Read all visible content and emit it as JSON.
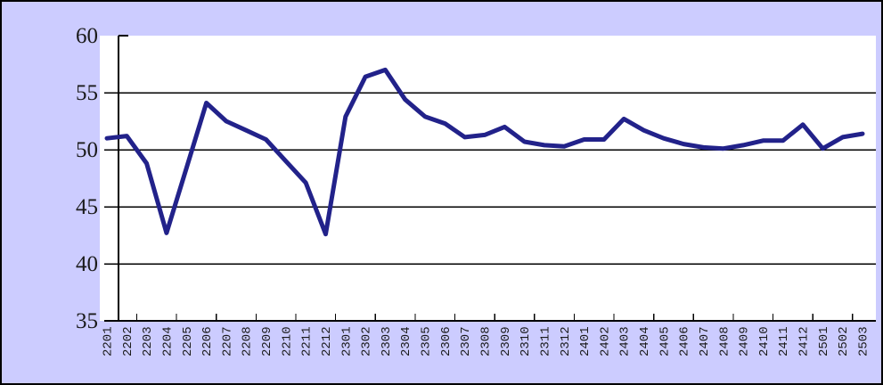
{
  "chart_data": {
    "type": "line",
    "categories": [
      "2201",
      "2202",
      "2203",
      "2204",
      "2205",
      "2206",
      "2207",
      "2208",
      "2209",
      "2210",
      "2211",
      "2212",
      "2301",
      "2302",
      "2303",
      "2304",
      "2305",
      "2306",
      "2307",
      "2308",
      "2309",
      "2310",
      "2311",
      "2312",
      "2401",
      "2402",
      "2403",
      "2404",
      "2405",
      "2406",
      "2407",
      "2408",
      "2409",
      "2410",
      "2411",
      "2412",
      "2501",
      "2502",
      "2503"
    ],
    "values": [
      51.0,
      51.2,
      48.8,
      42.7,
      48.4,
      54.1,
      52.5,
      51.7,
      50.9,
      49.0,
      47.1,
      42.6,
      52.9,
      56.4,
      57.0,
      54.4,
      52.9,
      52.3,
      51.1,
      51.3,
      52.0,
      50.7,
      50.4,
      50.3,
      50.9,
      50.9,
      52.7,
      51.7,
      51.0,
      50.5,
      50.2,
      50.1,
      50.4,
      50.8,
      50.8,
      52.2,
      50.1,
      51.1,
      51.4
    ],
    "ylim": [
      35,
      60
    ],
    "yticks": [
      35,
      40,
      45,
      50,
      55,
      60
    ],
    "grid": "horizontal-major",
    "legend_position": "none",
    "colors": {
      "background": "#CCCCFF",
      "plot_background": "#FFFFFF",
      "line": "#22228A",
      "grid": "#000000",
      "axis": "#000000",
      "label_text": "#1a1a1a",
      "outer_border": "#000000"
    }
  }
}
